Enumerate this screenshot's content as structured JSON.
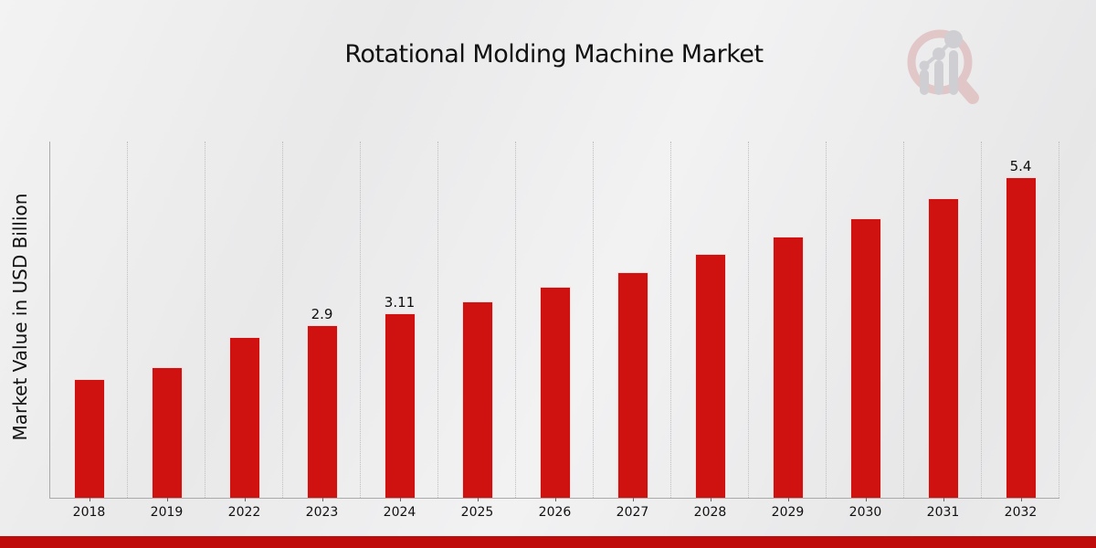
{
  "title": "Rotational Molding Machine Market",
  "y_axis_label": "Market Value in USD Billion",
  "watermark_icon": "magnifier-bar-chart-logo",
  "colors": {
    "bar": "#cf1110",
    "accent_strip": "#c00b0b",
    "grid": "#bfbfbf",
    "axis": "#aaaaaa",
    "watermark_ring": "#d9a3a3",
    "watermark_glyph": "#b3b3bb"
  },
  "chart_data": {
    "type": "bar",
    "title": "Rotational Molding Machine Market",
    "xlabel": "",
    "ylabel": "Market Value in USD Billion",
    "categories": [
      "2018",
      "2019",
      "2022",
      "2023",
      "2024",
      "2025",
      "2026",
      "2027",
      "2028",
      "2029",
      "2030",
      "2031",
      "2032"
    ],
    "values": [
      2.0,
      2.2,
      2.7,
      2.9,
      3.11,
      3.3,
      3.55,
      3.8,
      4.1,
      4.4,
      4.7,
      5.05,
      5.4
    ],
    "point_labels": [
      "",
      "",
      "",
      "2.9",
      "3.11",
      "",
      "",
      "",
      "",
      "",
      "",
      "",
      "5.4"
    ],
    "ylim": [
      0,
      6
    ],
    "grid": "vertical-dotted",
    "legend": "none",
    "y_tick_labels_visible": false
  }
}
